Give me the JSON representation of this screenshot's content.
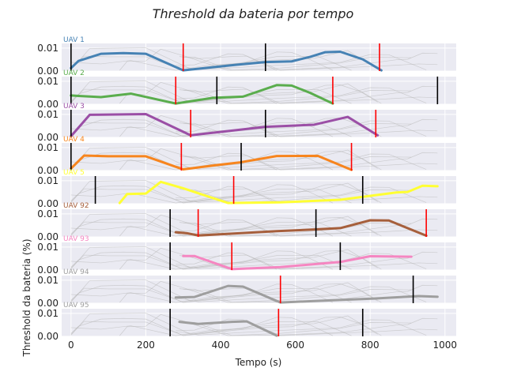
{
  "chart_data": {
    "type": "line",
    "title": "Threshold da bateria por tempo",
    "xlabel": "Tempo (s)",
    "ylabel": "Threshold da bateria (%)",
    "xlim": [
      -25,
      1030
    ],
    "ylim": [
      0,
      0.012
    ],
    "x_ticks": [
      "0",
      "200",
      "400",
      "600",
      "800",
      "1000"
    ],
    "x_tick_values": [
      0,
      200,
      400,
      600,
      800,
      1000
    ],
    "y_ticks": [
      "0.00",
      "0.01"
    ],
    "y_tick_values": [
      0,
      0.01
    ],
    "grid": true,
    "panels": [
      {
        "name": "UAV 1",
        "color": "#4682b4",
        "x": [
          0,
          20,
          80,
          140,
          200,
          300,
          440,
          520,
          590,
          640,
          680,
          720,
          780,
          830
        ],
        "y": [
          0.0013,
          0.0044,
          0.0075,
          0.0078,
          0.0075,
          0.0003,
          0.0027,
          0.0039,
          0.0042,
          0.0062,
          0.0082,
          0.0084,
          0.0051,
          0.0003
        ],
        "black_lines": [
          0,
          520
        ],
        "red_lines": [
          300,
          825
        ]
      },
      {
        "name": "UAV 2",
        "color": "#5aad4d",
        "x": [
          0,
          20,
          80,
          160,
          280,
          380,
          460,
          550,
          590,
          640,
          700
        ],
        "y": [
          0.0038,
          0.0036,
          0.0031,
          0.0046,
          0.0003,
          0.0028,
          0.0033,
          0.0083,
          0.0081,
          0.0049,
          0.0003
        ],
        "black_lines": [
          0,
          390,
          980
        ],
        "red_lines": [
          280,
          700
        ]
      },
      {
        "name": "UAV 3",
        "color": "#9b4fa6",
        "x": [
          0,
          50,
          200,
          320,
          520,
          650,
          740,
          820
        ],
        "y": [
          0.0005,
          0.0098,
          0.0101,
          0.0009,
          0.0046,
          0.0055,
          0.0089,
          0.0009
        ],
        "black_lines": [
          0,
          520
        ],
        "red_lines": [
          320,
          815
        ]
      },
      {
        "name": "UAV 4",
        "color": "#f7851e",
        "x": [
          0,
          35,
          100,
          200,
          300,
          380,
          450,
          550,
          660,
          750
        ],
        "y": [
          0.0009,
          0.0065,
          0.0062,
          0.0062,
          0.0005,
          0.0022,
          0.0035,
          0.0063,
          0.0064,
          0.0003
        ],
        "black_lines": [
          0,
          455
        ],
        "red_lines": [
          295,
          750
        ]
      },
      {
        "name": "UAV 5",
        "color": "#ffff33",
        "x": [
          130,
          150,
          200,
          240,
          300,
          420,
          560,
          720,
          870,
          900,
          940,
          980
        ],
        "y": [
          0.0003,
          0.0042,
          0.0044,
          0.0095,
          0.0067,
          0.0003,
          0.0006,
          0.0017,
          0.0049,
          0.0051,
          0.0078,
          0.0076
        ],
        "black_lines": [
          65,
          780
        ],
        "red_lines": [
          435
        ]
      },
      {
        "name": "UAV 92",
        "color": "#a65f3c",
        "x": [
          280,
          310,
          340,
          450,
          550,
          650,
          720,
          800,
          850,
          950
        ],
        "y": [
          0.002,
          0.0016,
          0.0006,
          0.0016,
          0.0025,
          0.0032,
          0.0038,
          0.0072,
          0.0071,
          0.0005
        ],
        "black_lines": [
          265,
          655
        ],
        "red_lines": [
          340,
          950
        ]
      },
      {
        "name": "UAV 93",
        "color": "#f586c1",
        "x": [
          300,
          330,
          430,
          560,
          720,
          800,
          910
        ],
        "y": [
          0.0061,
          0.0061,
          0.0004,
          0.0013,
          0.0035,
          0.006,
          0.0058
        ],
        "black_lines": [
          265,
          720
        ],
        "red_lines": [
          430
        ]
      },
      {
        "name": "UAV 94",
        "color": "#9e9e9e",
        "x": [
          280,
          330,
          420,
          460,
          560,
          700,
          810,
          930,
          980
        ],
        "y": [
          0.0025,
          0.0027,
          0.0075,
          0.0072,
          0.0003,
          0.0013,
          0.002,
          0.0031,
          0.0028
        ],
        "black_lines": [
          265,
          915
        ],
        "red_lines": [
          560
        ]
      },
      {
        "name": "UAV 95",
        "color": "#9e9e9e",
        "x": [
          290,
          340,
          430,
          470,
          550
        ],
        "y": [
          0.0063,
          0.0054,
          0.0063,
          0.0065,
          0.0003
        ],
        "black_lines": [
          265,
          780
        ],
        "red_lines": [
          555
        ]
      }
    ]
  }
}
